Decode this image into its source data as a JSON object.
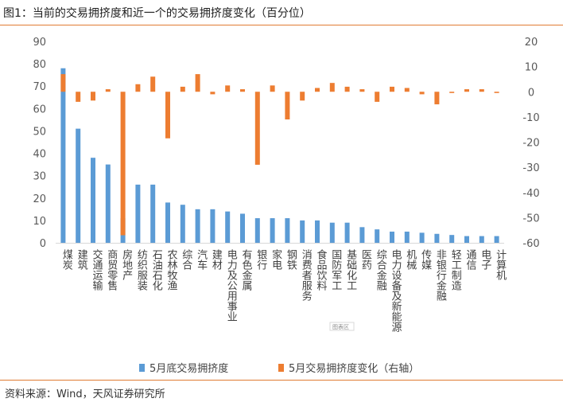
{
  "figure": {
    "title": "图1：当前的交易拥挤度和近一个的交易拥挤度变化（百分位）",
    "source": "资料来源：Wind，天风证券研究所",
    "watermark": "图表区"
  },
  "colors": {
    "crowding": "#5b9bd5",
    "change": "#ed7d31",
    "rule": "#e07b32",
    "axis": "#d9d9d9"
  },
  "chart_data": {
    "type": "bar",
    "title": "当前的交易拥挤度和近一个的交易拥挤度变化（百分位）",
    "categories": [
      "煤炭",
      "建筑",
      "交通运输",
      "商贸零售",
      "房地产",
      "纺织服装",
      "石油石化",
      "农林牧渔",
      "综合",
      "汽车",
      "建材",
      "电力及公用事业",
      "有色金属",
      "银行",
      "家电",
      "钢铁",
      "消费者服务",
      "食品饮料",
      "国防军工",
      "基础化工",
      "医药",
      "综合金融",
      "电力设备及新能源",
      "机械",
      "传媒",
      "非银行金融",
      "轻工制造",
      "通信",
      "电子",
      "计算机"
    ],
    "series": [
      {
        "name": "5月底交易拥挤度",
        "axis": "left",
        "values": [
          78,
          51,
          38,
          35,
          11,
          26,
          26,
          18,
          17,
          15,
          15,
          14,
          13,
          11,
          11,
          11,
          10,
          10,
          9,
          9,
          7,
          6,
          5,
          5,
          4.5,
          4,
          3.5,
          3,
          3,
          3
        ]
      },
      {
        "name": "5月交易拥挤度变化（右轴）",
        "axis": "right",
        "values": [
          7,
          -4,
          -3.5,
          1,
          -57,
          3,
          6,
          -18.5,
          2,
          7,
          -1,
          2.5,
          1,
          -29,
          2.5,
          -11,
          -3.5,
          1.5,
          3.5,
          2,
          1,
          -4,
          2,
          1.5,
          -1,
          -5,
          -0.5,
          1,
          1,
          -0.5
        ]
      }
    ],
    "y_left": {
      "min": 0,
      "max": 90,
      "ticks": [
        "0",
        "10",
        "20",
        "30",
        "40",
        "50",
        "60",
        "70",
        "80",
        "90"
      ]
    },
    "y_right": {
      "min": -60,
      "max": 20,
      "ticks": [
        "20",
        "10",
        "0",
        "-10",
        "-20",
        "-30",
        "-40",
        "-50",
        "-60"
      ]
    },
    "legend": [
      "5月底交易拥挤度",
      "5月交易拥挤度变化（右轴）"
    ],
    "legend_position": "bottom",
    "grid": false
  }
}
